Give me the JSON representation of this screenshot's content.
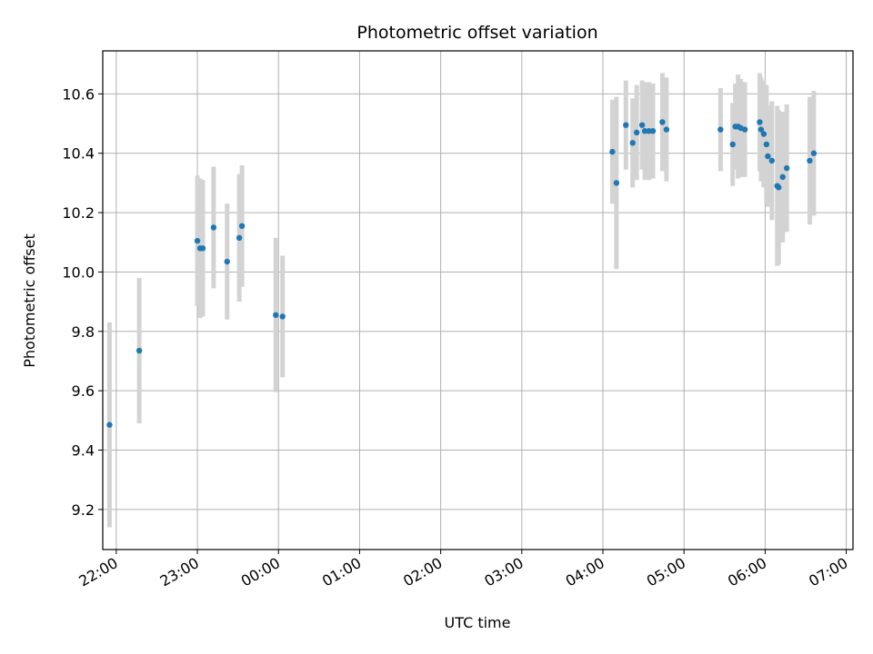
{
  "chart_data": {
    "type": "scatter",
    "title": "Photometric offset variation",
    "xlabel": "UTC time",
    "ylabel": "Photometric offset",
    "xlim": [
      "21:50",
      "07:05"
    ],
    "ylim": [
      9.065,
      10.745
    ],
    "x_ticks": [
      "22:00",
      "23:00",
      "00:00",
      "01:00",
      "02:00",
      "03:00",
      "04:00",
      "05:00",
      "06:00",
      "07:00"
    ],
    "y_ticks": [
      "9.2",
      "9.4",
      "9.6",
      "9.8",
      "10.0",
      "10.2",
      "10.4",
      "10.6"
    ],
    "grid": true,
    "colors": {
      "point": "#1f77b4",
      "errorbar": "#d3d3d3",
      "grid": "#b0b0b0"
    },
    "series": [
      {
        "x": [
          "21:55",
          "22:17",
          "23:00",
          "23:02",
          "23:04",
          "23:12",
          "23:22",
          "23:31",
          "23:33",
          "23:58",
          "00:03",
          "04:07",
          "04:10",
          "04:17",
          "04:22",
          "04:25",
          "04:29",
          "04:31",
          "04:34",
          "04:37",
          "04:44",
          "04:47",
          "05:27",
          "05:36",
          "05:38",
          "05:40",
          "05:42",
          "05:45",
          "05:56",
          "05:57",
          "05:59",
          "06:01",
          "06:02",
          "06:05",
          "06:09",
          "06:10",
          "06:13",
          "06:16",
          "06:33",
          "06:36"
        ],
        "y": [
          9.485,
          9.735,
          10.105,
          10.08,
          10.08,
          10.15,
          10.035,
          10.115,
          10.155,
          9.855,
          9.85,
          10.405,
          10.3,
          10.495,
          10.435,
          10.47,
          10.495,
          10.475,
          10.475,
          10.475,
          10.505,
          10.48,
          10.48,
          10.43,
          10.49,
          10.49,
          10.485,
          10.48,
          10.505,
          10.48,
          10.465,
          10.43,
          10.39,
          10.375,
          10.29,
          10.285,
          10.32,
          10.35,
          10.375,
          10.4
        ],
        "err": [
          0.345,
          0.245,
          0.22,
          0.235,
          0.23,
          0.205,
          0.195,
          0.215,
          0.205,
          0.26,
          0.205,
          0.175,
          0.29,
          0.15,
          0.15,
          0.16,
          0.15,
          0.165,
          0.165,
          0.16,
          0.165,
          0.175,
          0.14,
          0.14,
          0.145,
          0.175,
          0.165,
          0.16,
          0.165,
          0.175,
          0.18,
          0.2,
          0.17,
          0.2,
          0.27,
          0.26,
          0.22,
          0.215,
          0.215,
          0.21
        ]
      }
    ]
  }
}
